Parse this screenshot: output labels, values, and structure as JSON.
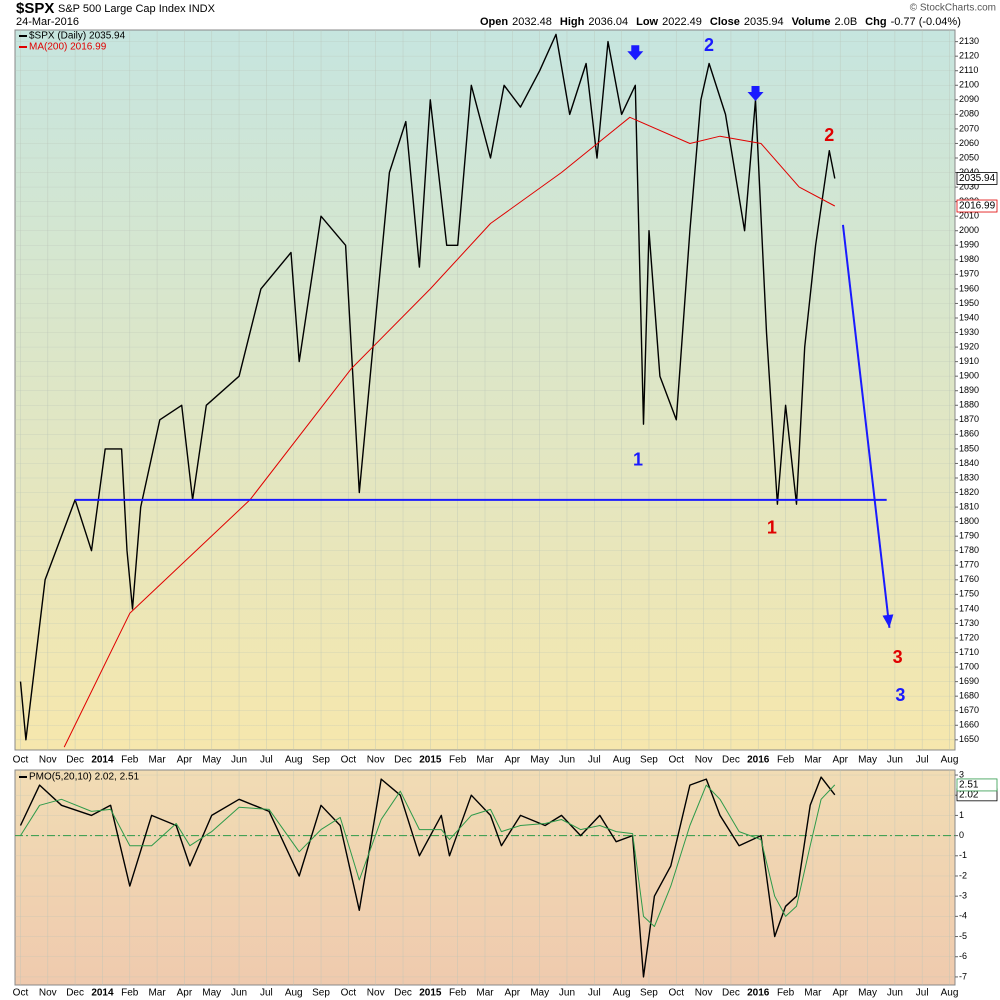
{
  "chart_data": [
    {
      "type": "line",
      "title": "$SPX",
      "subtitle": "S&P 500 Large Cap Index INDX",
      "date": "24-Mar-2016",
      "quote": [
        {
          "label": "Open",
          "value": "2032.48"
        },
        {
          "label": "High",
          "value": "2036.04"
        },
        {
          "label": "Low",
          "value": "2022.49"
        },
        {
          "label": "Close",
          "value": "2035.94"
        },
        {
          "label": "Volume",
          "value": "2.0B"
        },
        {
          "label": "Chg",
          "value": "-0.77 (-0.04%)"
        }
      ],
      "credit": "© StockCharts.com",
      "xlim": [
        -0.2,
        34.2
      ],
      "xticks": [
        {
          "value": 0,
          "label": "Oct"
        },
        {
          "value": 1,
          "label": "Nov"
        },
        {
          "value": 2,
          "label": "Dec"
        },
        {
          "value": 3,
          "label": "2014"
        },
        {
          "value": 4,
          "label": "Feb"
        },
        {
          "value": 5,
          "label": "Mar"
        },
        {
          "value": 6,
          "label": "Apr"
        },
        {
          "value": 7,
          "label": "May"
        },
        {
          "value": 8,
          "label": "Jun"
        },
        {
          "value": 9,
          "label": "Jul"
        },
        {
          "value": 10,
          "label": "Aug"
        },
        {
          "value": 11,
          "label": "Sep"
        },
        {
          "value": 12,
          "label": "Oct"
        },
        {
          "value": 13,
          "label": "Nov"
        },
        {
          "value": 14,
          "label": "Dec"
        },
        {
          "value": 15,
          "label": "2015"
        },
        {
          "value": 16,
          "label": "Feb"
        },
        {
          "value": 17,
          "label": "Mar"
        },
        {
          "value": 18,
          "label": "Apr"
        },
        {
          "value": 19,
          "label": "May"
        },
        {
          "value": 20,
          "label": "Jun"
        },
        {
          "value": 21,
          "label": "Jul"
        },
        {
          "value": 22,
          "label": "Aug"
        },
        {
          "value": 23,
          "label": "Sep"
        },
        {
          "value": 24,
          "label": "Oct"
        },
        {
          "value": 25,
          "label": "Nov"
        },
        {
          "value": 26,
          "label": "Dec"
        },
        {
          "value": 27,
          "label": "2016"
        },
        {
          "value": 28,
          "label": "Feb"
        },
        {
          "value": 29,
          "label": "Mar"
        },
        {
          "value": 30,
          "label": "Apr"
        },
        {
          "value": 31,
          "label": "May"
        },
        {
          "value": 32,
          "label": "Jun"
        },
        {
          "value": 33,
          "label": "Jul"
        },
        {
          "value": 34,
          "label": "Aug"
        }
      ],
      "ylim": [
        1643,
        2138
      ],
      "yticks": [
        1650,
        1660,
        1670,
        1680,
        1690,
        1700,
        1710,
        1720,
        1730,
        1740,
        1750,
        1760,
        1770,
        1780,
        1790,
        1800,
        1810,
        1820,
        1830,
        1840,
        1850,
        1860,
        1870,
        1880,
        1890,
        1900,
        1910,
        1920,
        1930,
        1940,
        1950,
        1960,
        1970,
        1980,
        1990,
        2000,
        2010,
        2020,
        2030,
        2040,
        2050,
        2060,
        2070,
        2080,
        2090,
        2100,
        2110,
        2120,
        2130
      ],
      "grid": true,
      "series": [
        {
          "name": "$SPX (Daily) 2035.94",
          "color": "#000000",
          "tag": "2035.94",
          "x": [
            0,
            0.2,
            0.9,
            2.0,
            2.6,
            3.1,
            3.7,
            3.9,
            4.1,
            4.4,
            5.1,
            5.9,
            6.3,
            6.8,
            8.0,
            8.8,
            9.9,
            10.2,
            11.0,
            11.9,
            12.4,
            12.8,
            13.5,
            14.1,
            14.6,
            15.0,
            15.6,
            16.0,
            16.5,
            17.2,
            17.7,
            18.3,
            19.0,
            19.6,
            20.1,
            20.7,
            21.1,
            21.5,
            22.0,
            22.5,
            22.8,
            23.0,
            23.4,
            24.0,
            24.5,
            24.9,
            25.2,
            25.8,
            26.5,
            26.9,
            27.3,
            27.7,
            28.0,
            28.4,
            28.7,
            29.1,
            29.6,
            29.8
          ],
          "values": [
            1690,
            1650,
            1760,
            1815,
            1780,
            1850,
            1850,
            1780,
            1740,
            1810,
            1870,
            1880,
            1815,
            1880,
            1900,
            1960,
            1985,
            1910,
            2010,
            1990,
            1820,
            1900,
            2040,
            2075,
            1975,
            2090,
            1990,
            1990,
            2100,
            2050,
            2100,
            2085,
            2110,
            2135,
            2080,
            2115,
            2050,
            2130,
            2080,
            2100,
            1867,
            2000,
            1900,
            1870,
            2000,
            2090,
            2115,
            2080,
            2000,
            2090,
            1930,
            1812,
            1880,
            1812,
            1920,
            1990,
            2055,
            2035.94
          ]
        },
        {
          "name": "MA(200) 2016.99",
          "color": "#e00000",
          "tag": "2016.99",
          "x": [
            1.6,
            4.0,
            8.4,
            12.1,
            15.0,
            17.2,
            19.8,
            22.3,
            24.5,
            25.6,
            27.1,
            28.5,
            29.8
          ],
          "values": [
            1645,
            1737,
            1815,
            1905,
            1960,
            2005,
            2040,
            2078,
            2060,
            2065,
            2060,
            2030,
            2016.99
          ]
        }
      ],
      "trendlines": [
        {
          "color": "#1a1aff",
          "x": [
            2.0,
            31.7
          ],
          "y": [
            1815,
            1815
          ]
        },
        {
          "color": "#1a1aff",
          "x": [
            30.1,
            31.8
          ],
          "y": [
            2004,
            1727
          ],
          "arrow": true
        }
      ],
      "markers": [
        {
          "color": "#1a1aff",
          "x": 22.5,
          "y": 2122
        },
        {
          "color": "#1a1aff",
          "x": 26.9,
          "y": 2094
        }
      ],
      "annotations": [
        {
          "text": "1",
          "color": "#1a1aff",
          "x": 22.6,
          "y": 1842
        },
        {
          "text": "2",
          "color": "#1a1aff",
          "x": 25.2,
          "y": 2127
        },
        {
          "text": "1",
          "color": "#e00000",
          "x": 27.5,
          "y": 1795
        },
        {
          "text": "2",
          "color": "#e00000",
          "x": 29.6,
          "y": 2065
        },
        {
          "text": "3",
          "color": "#e00000",
          "x": 32.1,
          "y": 1706
        },
        {
          "text": "3",
          "color": "#1a1aff",
          "x": 32.2,
          "y": 1680
        }
      ]
    },
    {
      "type": "line",
      "title": "PMO(5,20,10) 2.02, 2.51",
      "xlim": [
        -0.2,
        34.2
      ],
      "ylim": [
        -7.4,
        3.25
      ],
      "yticks": [
        3,
        2,
        1,
        0,
        -1,
        -2,
        -3,
        -4,
        -5,
        -6,
        -7
      ],
      "grid": true,
      "zero_line": true,
      "series": [
        {
          "color": "#000000",
          "tag": "2.02",
          "x": [
            0,
            0.7,
            1.5,
            2.6,
            3.3,
            4.0,
            4.8,
            5.7,
            6.2,
            7.0,
            8.0,
            9.1,
            10.2,
            11.0,
            11.7,
            12.4,
            13.2,
            13.9,
            14.6,
            15.4,
            15.7,
            16.5,
            17.2,
            17.6,
            18.3,
            19.2,
            19.8,
            20.5,
            21.2,
            21.8,
            22.4,
            22.8,
            23.2,
            23.8,
            24.5,
            25.1,
            25.6,
            26.3,
            27.1,
            27.6,
            28.0,
            28.4,
            28.9,
            29.3,
            29.8
          ],
          "values": [
            0.5,
            2.5,
            1.5,
            1,
            1.5,
            -2.5,
            1,
            0.5,
            -1.5,
            1,
            1.8,
            1.2,
            -2,
            1.5,
            0.5,
            -3.7,
            2.8,
            2,
            -1,
            1,
            -1,
            2,
            1,
            -0.5,
            1,
            0.5,
            1,
            0,
            1,
            -0.3,
            0,
            -7,
            -3,
            -1.5,
            2.5,
            2.8,
            1,
            -0.5,
            0,
            -5,
            -3.5,
            -3,
            1.5,
            2.9,
            2.02
          ]
        },
        {
          "color": "#2e9a4a",
          "tag": "2.51",
          "x": [
            0,
            0.7,
            1.5,
            2.6,
            3.3,
            4.0,
            4.8,
            5.7,
            6.2,
            7.0,
            8.0,
            9.1,
            10.2,
            11.0,
            11.7,
            12.4,
            13.2,
            13.9,
            14.6,
            15.4,
            15.7,
            16.5,
            17.2,
            17.6,
            18.3,
            19.2,
            19.8,
            20.5,
            21.2,
            21.8,
            22.4,
            22.8,
            23.2,
            23.8,
            24.5,
            25.1,
            25.6,
            26.3,
            27.1,
            27.6,
            28.0,
            28.4,
            28.9,
            29.3,
            29.8
          ],
          "values": [
            0,
            1.5,
            1.8,
            1.2,
            1.3,
            -0.5,
            -0.5,
            0.6,
            -0.5,
            0.2,
            1.4,
            1.3,
            -0.8,
            0.3,
            0.9,
            -2.2,
            0.8,
            2.2,
            0.3,
            0.3,
            -0.2,
            1,
            1.3,
            0.2,
            0.5,
            0.6,
            0.8,
            0.3,
            0.5,
            0.2,
            0.1,
            -4,
            -4.5,
            -2.5,
            0.5,
            2.5,
            1.8,
            0.2,
            -0.2,
            -3,
            -4,
            -3.5,
            -0.5,
            1.8,
            2.51
          ]
        }
      ]
    }
  ]
}
